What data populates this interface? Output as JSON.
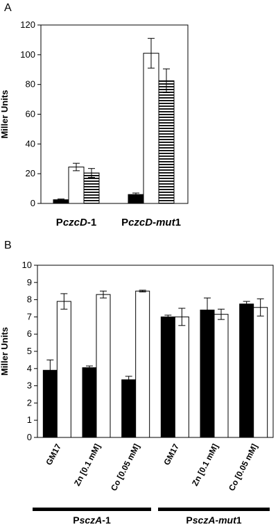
{
  "chart_data": [
    {
      "type": "bar",
      "panel": "A",
      "ylabel": "Miller Units",
      "ylim": [
        0,
        120
      ],
      "yticks": [
        0,
        20,
        40,
        60,
        80,
        100,
        120
      ],
      "categories": [
        {
          "parts": [
            {
              "t": "P",
              "i": false
            },
            {
              "t": "czcD",
              "i": true
            },
            {
              "t": "-1",
              "i": false
            }
          ]
        },
        {
          "parts": [
            {
              "t": "P",
              "i": false
            },
            {
              "t": "czcD-mut",
              "i": true
            },
            {
              "t": "1",
              "i": false
            }
          ]
        }
      ],
      "series": [
        {
          "fill": "solid-black",
          "values": [
            2.5,
            6
          ],
          "errors": [
            0.5,
            1
          ]
        },
        {
          "fill": "white",
          "values": [
            24.5,
            101
          ],
          "errors": [
            2.5,
            10
          ]
        },
        {
          "fill": "horizontal-stripes",
          "values": [
            20.5,
            82.5
          ],
          "errors": [
            3,
            8
          ]
        }
      ],
      "grid": false,
      "legend": "none"
    },
    {
      "type": "bar",
      "panel": "B",
      "ylabel": "Miller Units",
      "ylim": [
        0,
        10
      ],
      "yticks": [
        0,
        1,
        2,
        3,
        4,
        5,
        6,
        7,
        8,
        9,
        10
      ],
      "categories": [
        "GM17",
        "Zn [0.1 mM]",
        "Co [0.05 mM]",
        "GM17",
        "Zn [0.1 mM]",
        "Co [0.05 mM]"
      ],
      "series": [
        {
          "fill": "solid-black",
          "values": [
            3.9,
            4.05,
            3.35,
            7.0,
            7.4,
            7.75
          ],
          "errors": [
            0.6,
            0.1,
            0.2,
            0.1,
            0.7,
            0.15
          ]
        },
        {
          "fill": "white",
          "values": [
            7.9,
            8.3,
            8.5,
            7.0,
            7.15,
            7.55
          ],
          "errors": [
            0.45,
            0.2,
            0.05,
            0.5,
            0.3,
            0.5
          ]
        }
      ],
      "groups": [
        {
          "parts": [
            {
              "t": "P",
              "i": false
            },
            {
              "t": "sczA",
              "i": true
            },
            {
              "t": "-1",
              "i": false
            }
          ]
        },
        {
          "parts": [
            {
              "t": "P",
              "i": false
            },
            {
              "t": "sczA-mut",
              "i": true
            },
            {
              "t": "1",
              "i": false
            }
          ]
        }
      ],
      "grid": false,
      "legend": "none"
    }
  ]
}
